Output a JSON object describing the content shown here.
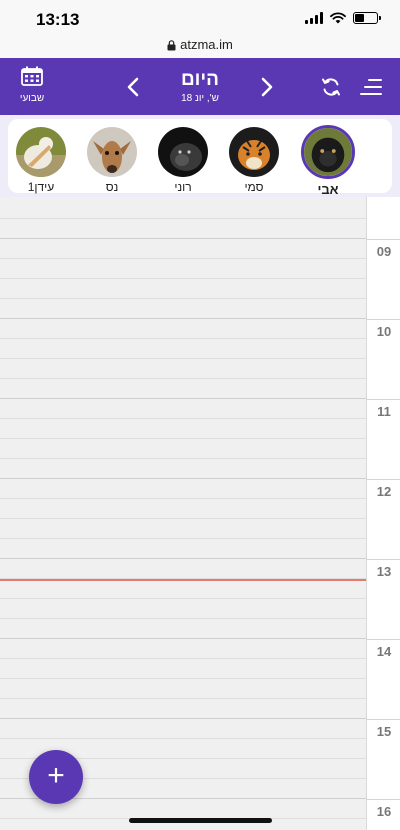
{
  "status_bar": {
    "time": "13:13",
    "battery_level": 0.45
  },
  "browser": {
    "url": "atzma.im"
  },
  "header": {
    "weekly_label": "שבועי",
    "title": "היום",
    "date": "ש', יונ 18",
    "icons": {
      "weekly": "calendar-icon",
      "prev": "chevron-left-icon",
      "next": "chevron-right-icon",
      "refresh": "refresh-icon",
      "menu": "menu-icon"
    }
  },
  "avatars": [
    {
      "name": "עידן1",
      "picture": "pelican-photo",
      "selected": false
    },
    {
      "name": "נס",
      "picture": "antelope-photo",
      "selected": false
    },
    {
      "name": "רוני",
      "picture": "gorilla-photo",
      "selected": false
    },
    {
      "name": "סמי",
      "picture": "tiger-photo",
      "selected": false
    },
    {
      "name": "אבי",
      "picture": "monkey-photo",
      "selected": true
    }
  ],
  "calendar": {
    "hours": [
      "09",
      "10",
      "11",
      "12",
      "13",
      "14",
      "15",
      "16"
    ],
    "current_time_marker_color": "#e67a6e"
  },
  "fab": {
    "label": "+"
  },
  "colors": {
    "brand": "#5b38b3",
    "strip": "#efecf9",
    "grid": "#f0f0f0"
  }
}
